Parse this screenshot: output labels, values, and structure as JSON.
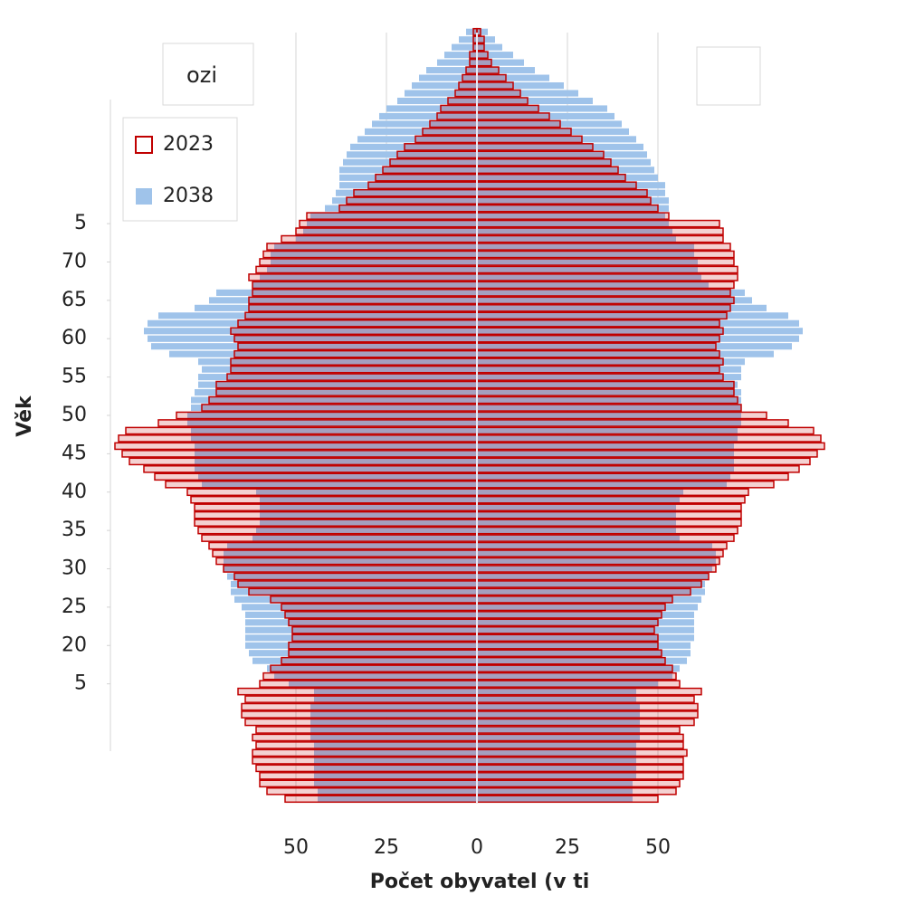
{
  "chart_data": {
    "type": "pyramid",
    "title": "ozi",
    "x_label": "Počet obyvatel (v ti",
    "y_label": "Věk",
    "xlim": [
      -100,
      100
    ],
    "xticks": [
      {
        "value": -50,
        "label": "50"
      },
      {
        "value": -25,
        "label": "25"
      },
      0,
      25,
      50
    ],
    "ylim": [
      -0.5,
      100.5
    ],
    "yticks": [
      {
        "value": 15,
        "label": "5"
      },
      20,
      25,
      30,
      35,
      40,
      45,
      50,
      55,
      60,
      65,
      70,
      {
        "value": 75,
        "label": "5"
      }
    ],
    "grid": true,
    "legend": "top-left",
    "series": [
      {
        "name": "2038",
        "color": "#9fc3ea",
        "left": [
          44,
          44,
          45,
          45,
          45,
          45,
          45,
          45,
          46,
          46,
          46,
          46,
          46,
          45,
          45,
          52,
          56,
          58,
          62,
          63,
          64,
          64,
          64,
          64,
          64,
          65,
          67,
          68,
          68,
          69,
          70,
          70,
          70,
          69,
          62,
          61,
          60,
          60,
          60,
          60,
          61,
          76,
          77,
          78,
          78,
          78,
          78,
          79,
          79,
          80,
          80,
          79,
          79,
          78,
          77,
          77,
          76,
          77,
          85,
          90,
          91,
          92,
          91,
          88,
          78,
          74,
          72,
          62,
          60,
          58,
          57,
          57,
          56,
          50,
          48,
          47,
          46,
          42,
          40,
          39,
          38,
          38,
          38,
          37,
          36,
          35,
          33,
          31,
          29,
          27,
          25,
          22,
          20,
          18,
          16,
          14,
          11,
          9,
          7,
          5,
          3
        ],
        "right": [
          43,
          43,
          43,
          44,
          44,
          44,
          44,
          44,
          45,
          45,
          45,
          45,
          45,
          44,
          44,
          50,
          54,
          56,
          58,
          59,
          59,
          60,
          60,
          60,
          60,
          61,
          62,
          63,
          63,
          64,
          65,
          66,
          66,
          65,
          56,
          55,
          55,
          55,
          55,
          56,
          57,
          69,
          70,
          71,
          71,
          71,
          71,
          72,
          72,
          73,
          73,
          73,
          73,
          73,
          72,
          73,
          73,
          74,
          82,
          87,
          89,
          90,
          89,
          86,
          80,
          76,
          74,
          64,
          62,
          61,
          61,
          60,
          60,
          55,
          54,
          53,
          52,
          53,
          53,
          52,
          52,
          50,
          49,
          48,
          47,
          46,
          44,
          42,
          40,
          38,
          36,
          32,
          28,
          24,
          20,
          16,
          13,
          10,
          7,
          5,
          3
        ]
      },
      {
        "name": "2023",
        "color": "#c00000",
        "left": [
          53,
          58,
          60,
          60,
          61,
          62,
          62,
          61,
          62,
          61,
          64,
          65,
          65,
          64,
          66,
          60,
          59,
          57,
          54,
          52,
          52,
          51,
          51,
          52,
          53,
          54,
          57,
          63,
          66,
          67,
          70,
          72,
          73,
          74,
          76,
          77,
          78,
          78,
          78,
          79,
          80,
          86,
          89,
          92,
          96,
          98,
          100,
          99,
          97,
          88,
          83,
          76,
          74,
          72,
          72,
          69,
          68,
          68,
          67,
          66,
          67,
          68,
          66,
          64,
          63,
          63,
          62,
          62,
          63,
          61,
          60,
          59,
          58,
          54,
          50,
          49,
          47,
          38,
          36,
          34,
          30,
          28,
          26,
          24,
          22,
          20,
          17,
          15,
          13,
          11,
          10,
          8,
          6,
          5,
          4,
          3,
          2,
          2,
          1,
          1,
          1
        ],
        "right": [
          50,
          55,
          56,
          57,
          57,
          57,
          58,
          57,
          57,
          56,
          60,
          61,
          61,
          60,
          62,
          56,
          55,
          54,
          52,
          51,
          50,
          50,
          49,
          50,
          51,
          52,
          54,
          59,
          62,
          64,
          66,
          67,
          68,
          69,
          71,
          72,
          73,
          73,
          73,
          74,
          75,
          82,
          86,
          89,
          92,
          94,
          96,
          95,
          93,
          86,
          80,
          73,
          72,
          71,
          71,
          68,
          67,
          68,
          67,
          66,
          67,
          68,
          67,
          69,
          70,
          71,
          70,
          71,
          72,
          72,
          71,
          71,
          70,
          68,
          68,
          67,
          53,
          50,
          48,
          47,
          44,
          41,
          39,
          37,
          35,
          32,
          29,
          26,
          23,
          20,
          17,
          14,
          12,
          10,
          8,
          6,
          4,
          3,
          2,
          2,
          1
        ]
      }
    ]
  }
}
